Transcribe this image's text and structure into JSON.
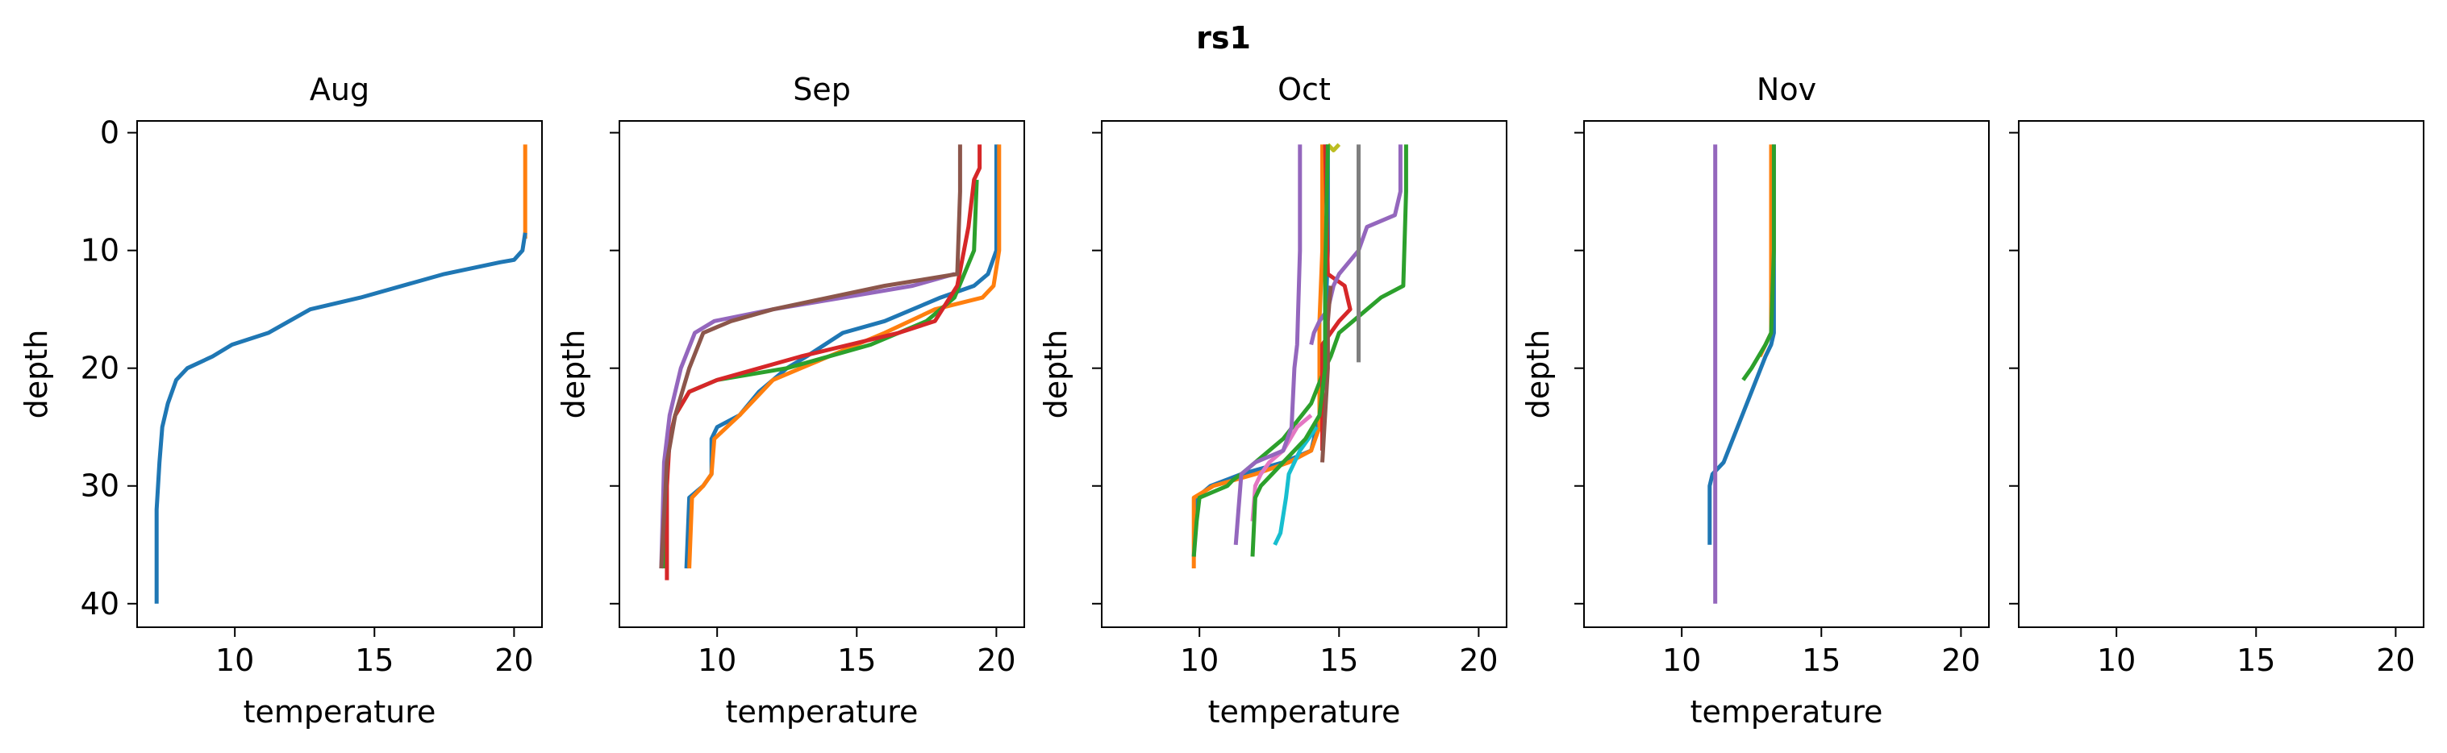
{
  "chart_data": {
    "type": "line",
    "title": "rs1",
    "xlabel": "temperature",
    "ylabel": "depth",
    "xlim": [
      6.5,
      21.0
    ],
    "ylim": [
      42,
      -1
    ],
    "xticks": [
      10,
      15,
      20
    ],
    "yticks": [
      0,
      10,
      20,
      30,
      40
    ],
    "panels": [
      {
        "title": "Aug",
        "series": [
          {
            "color": "#ff7f0e",
            "x": [
              20.4,
              20.4,
              20.4
            ],
            "y": [
              1,
              5,
              9
            ]
          },
          {
            "color": "#1f77b4",
            "x": [
              20.4,
              20.3,
              20.0,
              19.5,
              17.5,
              14.5,
              12.7,
              11.2,
              9.9,
              9.2,
              8.3,
              7.9,
              7.6,
              7.4,
              7.3,
              7.2,
              7.2
            ],
            "y": [
              8.5,
              10,
              10.8,
              11,
              12,
              14,
              15,
              17,
              18,
              19,
              20,
              21,
              23,
              25,
              28,
              32,
              40
            ]
          }
        ]
      },
      {
        "title": "Sep",
        "series": [
          {
            "color": "#1f77b4",
            "x": [
              20.0,
              20.0,
              19.7,
              19.2,
              18.0,
              16.0,
              14.5,
              13.2,
              12.5,
              11.5,
              10.8,
              10.0,
              9.8,
              9.8,
              9.5,
              9.0,
              8.9
            ],
            "y": [
              1,
              10,
              12,
              13,
              14,
              16,
              17,
              19,
              20,
              22,
              24,
              25,
              26,
              29,
              30,
              31,
              37
            ]
          },
          {
            "color": "#ff7f0e",
            "x": [
              20.1,
              20.1,
              19.9,
              19.5,
              17.8,
              16.0,
              14.0,
              13.0,
              12.0,
              10.8,
              9.9,
              9.8,
              9.5,
              9.1,
              9.0
            ],
            "y": [
              1,
              10,
              13,
              14,
              15,
              17,
              19,
              20,
              21,
              24,
              26,
              29,
              30,
              31,
              37
            ]
          },
          {
            "color": "#2ca02c",
            "x": [
              19.3,
              19.2,
              18.5,
              17.5,
              15.5,
              12.5,
              10.0,
              9.0,
              8.5,
              8.3,
              8.2,
              8.1,
              8.1
            ],
            "y": [
              4,
              10,
              14,
              16,
              18,
              20,
              21,
              22,
              24,
              26,
              29,
              33,
              37
            ]
          },
          {
            "color": "#d62728",
            "x": [
              19.4,
              19.4,
              19.2,
              19.0,
              18.6,
              17.8,
              16.5,
              13.0,
              10.0,
              9.0,
              8.5,
              8.3,
              8.2,
              8.2
            ],
            "y": [
              1,
              3,
              4,
              8,
              13,
              16,
              17,
              19,
              21,
              22,
              24,
              26,
              30,
              38
            ]
          },
          {
            "color": "#9467bd",
            "x": [
              18.5,
              17.0,
              14.5,
              12.0,
              9.9,
              9.2,
              8.7,
              8.3,
              8.1,
              8.0
            ],
            "y": [
              12,
              13,
              14,
              15,
              16,
              17,
              20,
              24,
              28,
              37
            ]
          },
          {
            "color": "#8c564b",
            "x": [
              18.7,
              18.7,
              18.6,
              16.0,
              12.0,
              10.5,
              9.5,
              9.0,
              8.5,
              8.2,
              8.0
            ],
            "y": [
              1,
              5,
              12,
              13,
              15,
              16,
              17,
              20,
              24,
              28,
              37
            ]
          }
        ]
      },
      {
        "title": "Oct",
        "series": [
          {
            "color": "#1f77b4",
            "x": [
              14.6,
              14.6,
              14.5,
              14.5,
              14.3,
              14.0,
              13.0,
              11.5,
              10.4,
              9.9,
              9.8
            ],
            "y": [
              1,
              10,
              17,
              20,
              24,
              27,
              28,
              29,
              30,
              31,
              36
            ]
          },
          {
            "color": "#ff7f0e",
            "x": [
              14.4,
              14.4,
              14.3,
              14.3,
              14.0,
              13.2,
              12.0,
              10.5,
              9.8,
              9.8
            ],
            "y": [
              1,
              10,
              16,
              25,
              27,
              28,
              29,
              30,
              31,
              37
            ]
          },
          {
            "color": "#2ca02c",
            "x": [
              17.4,
              17.4,
              17.3,
              16.5,
              15.5,
              15.0,
              14.7,
              14.5,
              14.0,
              13.0,
              12.0,
              11.5,
              11.2,
              11.0,
              10.5,
              10.0,
              9.9,
              9.8
            ],
            "y": [
              1,
              5,
              13,
              14,
              16,
              17,
              19,
              20,
              23,
              26,
              28,
              29,
              29.5,
              30,
              30.5,
              31,
              33,
              36
            ]
          },
          {
            "color": "#d62728",
            "x": [
              14.5,
              14.6,
              15.2,
              15.4,
              15.0,
              14.7,
              14.4,
              14.4
            ],
            "y": [
              1,
              12,
              13,
              15,
              16,
              17,
              18,
              27
            ]
          },
          {
            "color": "#9467bd",
            "x": [
              17.2,
              17.2,
              17.0,
              16.0,
              15.7,
              15.0,
              14.8,
              14.6,
              14.3,
              14.1,
              14.0
            ],
            "y": [
              1,
              5,
              7,
              8,
              10,
              12,
              13,
              15,
              16,
              17,
              18
            ]
          },
          {
            "color": "#8c564b",
            "x": [
              14.7,
              14.6,
              14.6,
              14.4
            ],
            "y": [
              13,
              16,
              20,
              28
            ]
          },
          {
            "color": "#e377c2",
            "x": [
              14.0,
              13.5,
              13.0,
              12.5,
              12.2,
              12.0,
              11.9
            ],
            "y": [
              24,
              25,
              27,
              28,
              29,
              30,
              33
            ]
          },
          {
            "color": "#7f7f7f",
            "x": [
              15.7,
              15.7,
              15.7,
              15.7
            ],
            "y": [
              1,
              10,
              15,
              19.5
            ]
          },
          {
            "color": "#bcbd22",
            "x": [
              14.6,
              14.8,
              15.0
            ],
            "y": [
              1,
              1.5,
              1
            ]
          },
          {
            "color": "#17becf",
            "x": [
              14.2,
              13.6,
              13.2,
              13.1,
              12.9,
              12.7
            ],
            "y": [
              25,
              27,
              29,
              31,
              34,
              35
            ]
          },
          {
            "color": "#2ca02c",
            "x": [
              14.6,
              14.5,
              14.5,
              14.3,
              13.8,
              13.0,
              12.6,
              12.2,
              12.0,
              11.9
            ],
            "y": [
              1,
              12,
              20,
              24,
              26,
              28,
              29,
              30,
              31,
              36
            ]
          },
          {
            "color": "#9467bd",
            "x": [
              13.6,
              13.6,
              13.5,
              13.4,
              13.3,
              13.0,
              12.0,
              11.5,
              11.4,
              11.3
            ],
            "y": [
              1,
              10,
              18,
              20,
              25,
              27,
              28,
              29,
              32,
              35
            ]
          }
        ]
      },
      {
        "title": "Nov",
        "series": [
          {
            "color": "#1f77b4",
            "x": [
              13.3,
              13.3,
              13.3,
              13.2,
              13.0,
              12.5,
              12.0,
              11.5,
              11.1,
              11.0,
              11.0
            ],
            "y": [
              1,
              10,
              17,
              18,
              19,
              22,
              25,
              28,
              29,
              30,
              35
            ]
          },
          {
            "color": "#ff7f0e",
            "x": [
              13.2,
              13.2,
              13.2,
              13.0,
              12.8
            ],
            "y": [
              1,
              10,
              17,
              18,
              19
            ]
          },
          {
            "color": "#2ca02c",
            "x": [
              13.3,
              13.3,
              13.2,
              13.0,
              12.5,
              12.2
            ],
            "y": [
              1,
              10,
              17,
              18,
              20,
              21
            ]
          },
          {
            "color": "#9467bd",
            "x": [
              11.2,
              11.2,
              11.2
            ],
            "y": [
              1,
              20,
              40
            ]
          }
        ]
      },
      {
        "title": "",
        "series": []
      }
    ]
  }
}
